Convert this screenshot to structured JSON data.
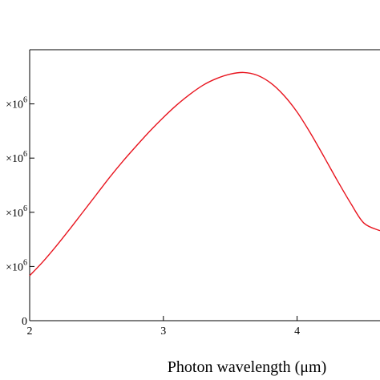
{
  "chart_data": {
    "type": "line",
    "title": "",
    "xlabel": "Photon wavelength (μm)",
    "ylabel": "",
    "xlim": [
      2,
      4.62
    ],
    "ylim": [
      0,
      5000000
    ],
    "x_ticks": [
      {
        "value": 2,
        "label": "2"
      },
      {
        "value": 3,
        "label": "3"
      },
      {
        "value": 4,
        "label": "4"
      }
    ],
    "y_ticks": [
      {
        "value": 0,
        "label": "0"
      },
      {
        "value": 1000000,
        "label": "×10",
        "exp": "6"
      },
      {
        "value": 2000000,
        "label": "×10",
        "exp": "6"
      },
      {
        "value": 3000000,
        "label": "×10",
        "exp": "6"
      },
      {
        "value": 4000000,
        "label": "×10",
        "exp": "6"
      }
    ],
    "grid": false,
    "series": [
      {
        "color": "#e8141e",
        "x": [
          2.0,
          2.1,
          2.2,
          2.3,
          2.4,
          2.5,
          2.6,
          2.7,
          2.8,
          2.9,
          3.0,
          3.1,
          3.2,
          3.3,
          3.4,
          3.5,
          3.6,
          3.7,
          3.8,
          3.9,
          4.0,
          4.1,
          4.2,
          4.3,
          4.4,
          4.5,
          4.62
        ],
        "y": [
          830000,
          1090000,
          1380000,
          1690000,
          2010000,
          2330000,
          2650000,
          2950000,
          3230000,
          3500000,
          3750000,
          3980000,
          4180000,
          4350000,
          4470000,
          4550000,
          4580000,
          4530000,
          4390000,
          4160000,
          3850000,
          3460000,
          3030000,
          2590000,
          2170000,
          1800000,
          1660000
        ]
      }
    ]
  }
}
